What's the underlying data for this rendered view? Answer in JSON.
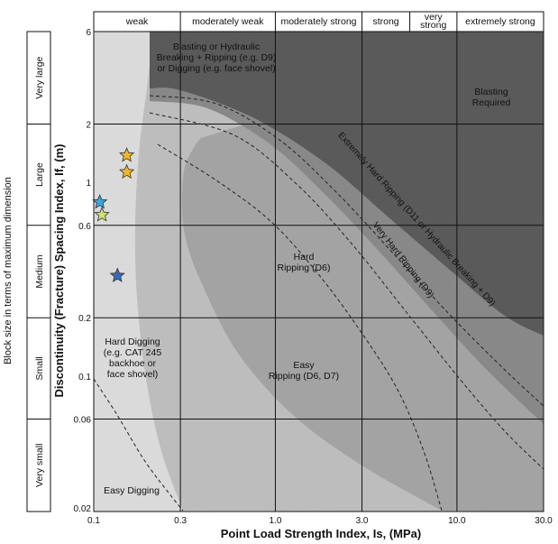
{
  "chart_data": {
    "type": "scatter",
    "title": "",
    "xlabel": "Point Load Strength Index, Is, (MPa)",
    "ylabel": "Discontinuity (Fracture) Spacing Index, If, (m)",
    "block_size_label": "Block size in terms of maximum dimension",
    "x_scale": "log",
    "y_scale": "log",
    "xlim": [
      0.1,
      30.0
    ],
    "ylim": [
      0.02,
      6
    ],
    "x_ticks": [
      "0.1",
      "0.3",
      "1.0",
      "3.0",
      "10.0",
      "30.0"
    ],
    "y_ticks": [
      "6",
      "2",
      "1",
      "0.6",
      "0.2",
      "0.1",
      "0.06",
      "0.02"
    ],
    "grid": true,
    "strength_classes": [
      {
        "label": "weak",
        "from": 0.1,
        "to": 0.3
      },
      {
        "label": "moderately weak",
        "from": 0.3,
        "to": 1.0
      },
      {
        "label": "moderately strong",
        "from": 1.0,
        "to": 3.0
      },
      {
        "label": "strong",
        "from": 3.0,
        "to": 5.5
      },
      {
        "label": "very strong",
        "from": 5.5,
        "to": 10.0
      },
      {
        "label": "extremely strong",
        "from": 10.0,
        "to": 30.0
      }
    ],
    "block_size_classes": [
      {
        "label": "Very large",
        "from": 2,
        "to": 6
      },
      {
        "label": "Large",
        "from": 0.6,
        "to": 2
      },
      {
        "label": "Medium",
        "from": 0.2,
        "to": 0.6
      },
      {
        "label": "Small",
        "from": 0.06,
        "to": 0.2
      },
      {
        "label": "Very small",
        "from": 0.02,
        "to": 0.06
      }
    ],
    "zones": [
      {
        "label": "Blasting or Hydraulic Breaking + Ripping (e.g. D9) or Digging (e.g. face shovel)",
        "color": "#5a5a5a"
      },
      {
        "label": "Blasting Required",
        "color": "#5a5a5a"
      },
      {
        "label": "Extremely Hard Ripping (D11 or Hydraulic Breaking + D9)",
        "color": "#888888"
      },
      {
        "label": "Very Hard Ripping (D9)",
        "color": "#a3a3a3"
      },
      {
        "label": "Hard Ripping (D6)",
        "color": "#a3a3a3"
      },
      {
        "label": "Easy Ripping (D6, D7)",
        "color": "#bdbdbd"
      },
      {
        "label": "Hard Digging (e.g. CAT 245 backhoe or face shovel)",
        "color": "#dadada"
      },
      {
        "label": "Easy Digging",
        "color": "#dadada"
      }
    ],
    "points": [
      {
        "x": 0.152,
        "y": 1.38,
        "color": "#f2b81d"
      },
      {
        "x": 0.152,
        "y": 1.13,
        "color": "#f2b81d"
      },
      {
        "x": 0.108,
        "y": 0.79,
        "color": "#3aa6e0"
      },
      {
        "x": 0.111,
        "y": 0.68,
        "color": "#cfe07a"
      },
      {
        "x": 0.135,
        "y": 0.33,
        "color": "#2f6dc0"
      }
    ]
  }
}
